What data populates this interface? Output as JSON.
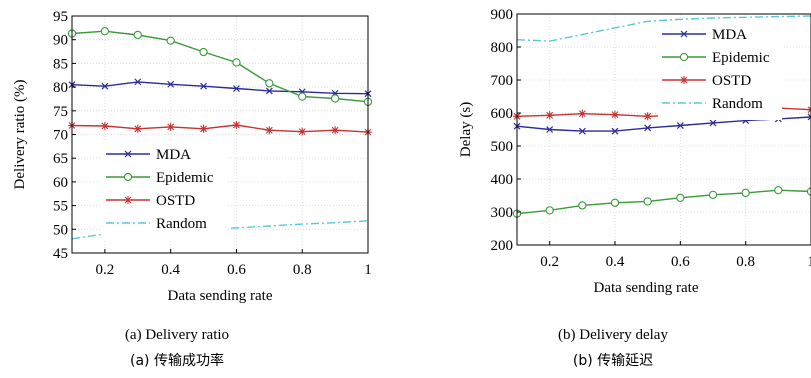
{
  "chart_data": [
    {
      "type": "line",
      "xlabel": "Data sending rate",
      "ylabel": "Delivery ratio (%)",
      "xlim": [
        0.1,
        1.0
      ],
      "ylim": [
        45,
        95
      ],
      "xticks": [
        "0.2",
        "0.4",
        "0.6",
        "0.8",
        "1"
      ],
      "yticks": [
        "45",
        "50",
        "55",
        "60",
        "65",
        "70",
        "75",
        "80",
        "85",
        "90",
        "95"
      ],
      "legend_position": "bottom-left",
      "caption_en": "(a) Delivery ratio",
      "caption_zh": "(a)  传输成功率",
      "x": [
        0.1,
        0.2,
        0.3,
        0.4,
        0.5,
        0.6,
        0.7,
        0.8,
        0.9,
        1.0
      ],
      "series": [
        {
          "name": "MDA",
          "color": "#2b2b9c",
          "marker": "x",
          "style": "solid",
          "values": [
            80.5,
            80.2,
            81.1,
            80.6,
            80.2,
            79.7,
            79.2,
            79.0,
            78.7,
            78.6
          ]
        },
        {
          "name": "Epidemic",
          "color": "#3a9a3a",
          "marker": "circle",
          "style": "solid",
          "values": [
            91.3,
            91.8,
            91.0,
            89.8,
            87.4,
            85.2,
            80.8,
            78.0,
            77.6,
            76.9
          ]
        },
        {
          "name": "OSTD",
          "color": "#c83232",
          "marker": "star",
          "style": "solid",
          "values": [
            71.9,
            71.8,
            71.2,
            71.6,
            71.2,
            72.0,
            70.9,
            70.6,
            70.9,
            70.5
          ]
        },
        {
          "name": "Random",
          "color": "#58c8d8",
          "marker": "none",
          "style": "dashdot",
          "values": [
            48.0,
            49.0,
            48.5,
            49.3,
            50.0,
            50.3,
            50.7,
            51.1,
            51.4,
            51.8
          ]
        }
      ]
    },
    {
      "type": "line",
      "xlabel": "Data sending rate",
      "ylabel": "Delay (s)",
      "xlim": [
        0.1,
        1.0
      ],
      "ylim": [
        200,
        900
      ],
      "xticks": [
        "0.2",
        "0.4",
        "0.6",
        "0.8",
        "1"
      ],
      "yticks": [
        "200",
        "300",
        "400",
        "500",
        "600",
        "700",
        "800",
        "900"
      ],
      "legend_position": "top-right",
      "caption_en": "(b) Delivery delay",
      "caption_zh": "(b)  传输延迟",
      "x": [
        0.1,
        0.2,
        0.3,
        0.4,
        0.5,
        0.6,
        0.7,
        0.8,
        0.9,
        1.0
      ],
      "series": [
        {
          "name": "MDA",
          "color": "#2b2b9c",
          "marker": "x",
          "style": "solid",
          "values": [
            560,
            550,
            545,
            545,
            555,
            562,
            570,
            577,
            582,
            588
          ]
        },
        {
          "name": "Epidemic",
          "color": "#3a9a3a",
          "marker": "circle",
          "style": "solid",
          "values": [
            295,
            305,
            320,
            328,
            332,
            343,
            352,
            358,
            366,
            362
          ]
        },
        {
          "name": "OSTD",
          "color": "#c83232",
          "marker": "star",
          "style": "solid",
          "values": [
            590,
            593,
            598,
            595,
            590,
            593,
            605,
            618,
            615,
            610
          ]
        },
        {
          "name": "Random",
          "color": "#58c8d8",
          "marker": "none",
          "style": "dashdot",
          "values": [
            822,
            818,
            838,
            858,
            878,
            884,
            888,
            890,
            892,
            894
          ]
        }
      ]
    }
  ]
}
